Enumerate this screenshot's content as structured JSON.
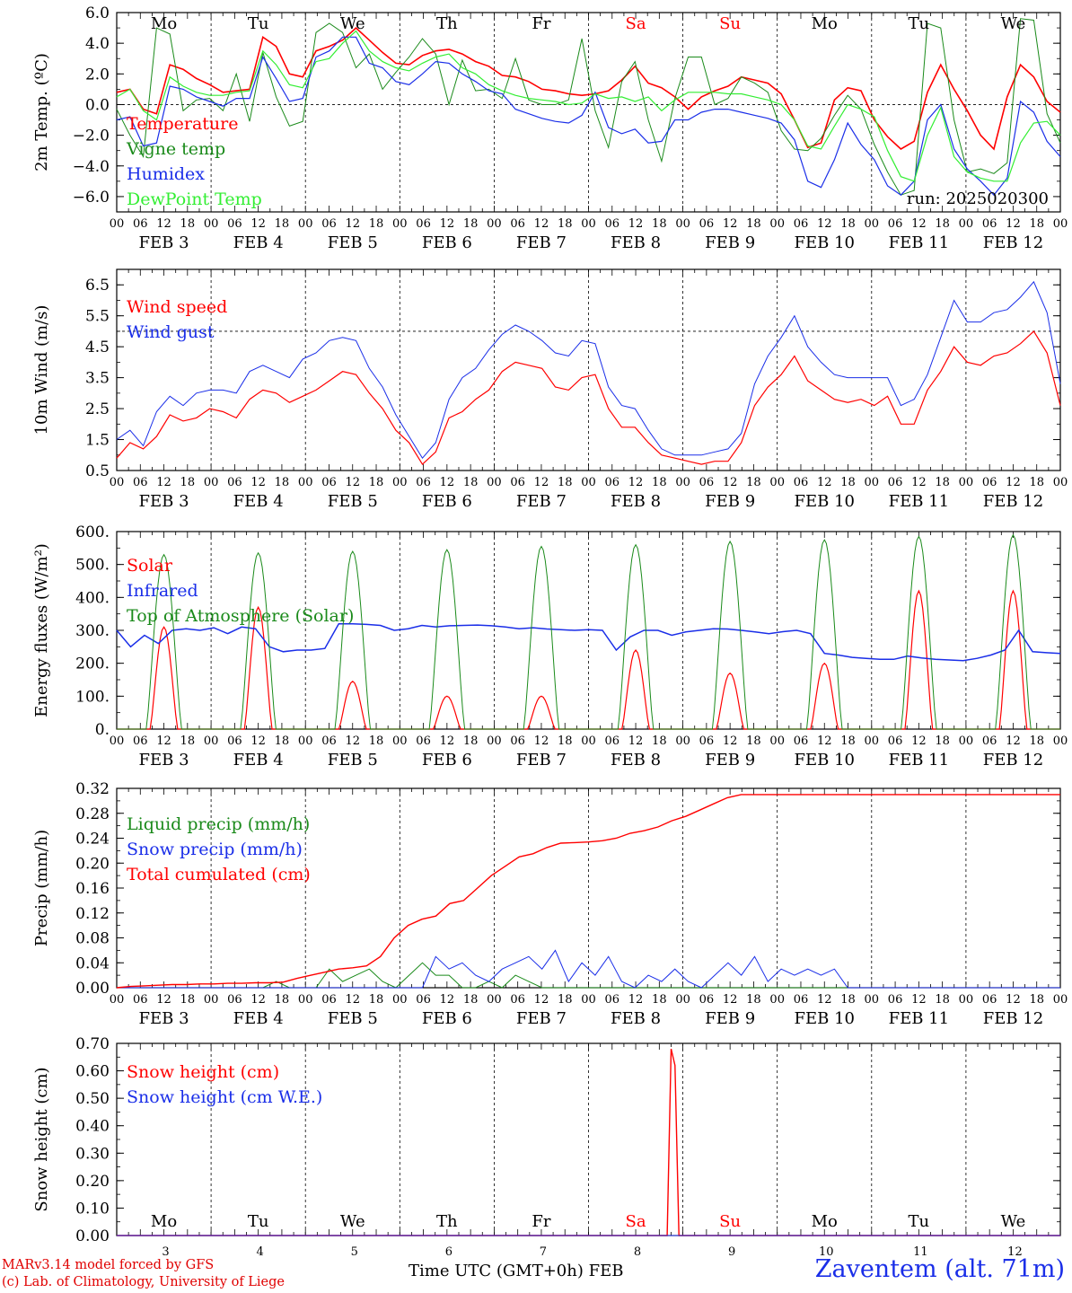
{
  "chart_data": [
    {
      "id": "temp",
      "type": "line",
      "ylabel": "2m Temp. (ºC)",
      "ylim": [
        -7,
        6
      ],
      "yticks": [
        "6.0",
        "4.0",
        "2.0",
        "0.0",
        "−2.0",
        "−4.0",
        "−6.0"
      ],
      "ytick_values": [
        6,
        4,
        2,
        0,
        -2,
        -4,
        -6
      ],
      "hline": 0,
      "run_label": "run: 2025020300",
      "days_top": [
        {
          "label": "Mo",
          "color": "#000000"
        },
        {
          "label": "Tu",
          "color": "#000000"
        },
        {
          "label": "We",
          "color": "#000000"
        },
        {
          "label": "Th",
          "color": "#000000"
        },
        {
          "label": "Fr",
          "color": "#000000"
        },
        {
          "label": "Sa",
          "color": "#ff0000"
        },
        {
          "label": "Su",
          "color": "#ff0000"
        },
        {
          "label": "Mo",
          "color": "#000000"
        },
        {
          "label": "Tu",
          "color": "#000000"
        },
        {
          "label": "We",
          "color": "#000000"
        }
      ],
      "series": [
        {
          "name": "Temperature",
          "color": "#ff0000",
          "width": 1.6,
          "values": [
            0.8,
            1,
            -0.3,
            -0.6,
            2.6,
            2.3,
            1.7,
            1.3,
            0.8,
            0.9,
            1,
            4.4,
            3.8,
            2,
            1.8,
            3.5,
            3.8,
            4.2,
            5,
            4.2,
            3.4,
            2.7,
            2.6,
            3.2,
            3.5,
            3.6,
            3.3,
            2.8,
            2.5,
            1.9,
            1.8,
            1.5,
            1,
            0.9,
            0.7,
            0.6,
            0.7,
            0.9,
            1.6,
            2.5,
            1.4,
            1.1,
            0.5,
            -0.3,
            0.5,
            0.9,
            1.2,
            1.8,
            1.6,
            1.4,
            0.7,
            -1,
            -2.8,
            -2.5,
            0.3,
            1.1,
            0.9,
            -1,
            -2.1,
            -2.9,
            -2.4,
            0.8,
            2.6,
            1,
            -0.4,
            -2,
            -2.9,
            0.5,
            2.6,
            1.8,
            0.2,
            -0.5
          ]
        },
        {
          "name": "Vigne temp",
          "color": "#1a8a1a",
          "width": 1,
          "values": [
            -0.3,
            -2,
            -3.4,
            5,
            4.6,
            -0.4,
            0.3,
            0.4,
            -0.4,
            2,
            -1.1,
            3.4,
            0.5,
            -1.4,
            -1.1,
            4.7,
            5.3,
            4.7,
            2.4,
            3.3,
            1,
            2.1,
            3.1,
            4.3,
            3.3,
            0,
            2.9,
            0.9,
            1,
            0.4,
            3,
            0.3,
            0,
            0,
            0.3,
            4.3,
            -0.4,
            -2.8,
            1.5,
            2.8,
            -1,
            -3.7,
            0.4,
            3.1,
            3.1,
            0,
            0.4,
            1.8,
            1.4,
            0.8,
            -1.7,
            -2.9,
            -3,
            -2.2,
            -0.7,
            0.6,
            -0.3,
            -2.6,
            -4.4,
            -5.9,
            -5.6,
            5.3,
            5,
            -1,
            -4.4,
            -4.2,
            -4.5,
            -3.8,
            5.6,
            5.5,
            -0.6,
            -2.5
          ]
        },
        {
          "name": "Humidex",
          "color": "#1a2ee8",
          "width": 1.2,
          "values": [
            -1,
            -0.8,
            -2.7,
            -2.5,
            1.2,
            1,
            0.5,
            0.2,
            -0.1,
            0.4,
            0.4,
            3.1,
            1.7,
            0.2,
            0.4,
            3.1,
            3.5,
            4.4,
            4.4,
            2.7,
            2.4,
            1.5,
            1.3,
            2,
            2.8,
            2.7,
            2,
            1.5,
            0.9,
            0.7,
            -0.3,
            -0.6,
            -0.9,
            -1.1,
            -1.2,
            -0.7,
            0.8,
            -1.5,
            -1.9,
            -1.6,
            -2.5,
            -2.4,
            -1,
            -1,
            -0.5,
            -0.3,
            -0.3,
            -0.5,
            -0.7,
            -0.9,
            -1.2,
            -2.3,
            -5,
            -5.4,
            -3.6,
            -1.2,
            -2.6,
            -3.6,
            -5.3,
            -5.9,
            -5,
            -1,
            0,
            -2.9,
            -4.2,
            -5,
            -5.9,
            -4.8,
            0.2,
            -0.5,
            -2.4,
            -3.4
          ]
        },
        {
          "name": "DewPoint Temp",
          "color": "#33ee33",
          "width": 1.2,
          "values": [
            0.5,
            1,
            -0.4,
            -1,
            1.8,
            1.2,
            0.8,
            0.6,
            0.6,
            0.8,
            0.9,
            3.5,
            2.6,
            1.3,
            1.1,
            2.8,
            3,
            4,
            4.8,
            3.5,
            2.8,
            2.4,
            2.2,
            2.7,
            3.1,
            3.3,
            2.4,
            2,
            1.3,
            0.9,
            0.6,
            0.4,
            0.3,
            0.2,
            0,
            0.1,
            0.7,
            0.4,
            0.5,
            0.2,
            0.5,
            -0.4,
            0.3,
            0.8,
            0.8,
            0.8,
            0.7,
            0.7,
            0.5,
            0.3,
            0,
            -1,
            -2.7,
            -2.9,
            -1.4,
            0,
            -0.3,
            -0.8,
            -3,
            -4.7,
            -5,
            -2,
            -0.2,
            -3.4,
            -4.4,
            -4.8,
            -5,
            -5,
            -2.5,
            -1.2,
            -1.1,
            -2
          ]
        }
      ]
    },
    {
      "id": "wind",
      "type": "line",
      "ylabel": "10m Wind (m/s)",
      "ylim": [
        0.5,
        7
      ],
      "yticks": [
        "6.5",
        "5.5",
        "4.5",
        "3.5",
        "2.5",
        "1.5",
        "0.5"
      ],
      "ytick_values": [
        6.5,
        5.5,
        4.5,
        3.5,
        2.5,
        1.5,
        0.5
      ],
      "hline": 5,
      "series": [
        {
          "name": "Wind speed",
          "color": "#ff0000",
          "width": 1.2,
          "values": [
            0.9,
            1.4,
            1.2,
            1.6,
            2.3,
            2.1,
            2.2,
            2.5,
            2.4,
            2.2,
            2.8,
            3.1,
            3,
            2.7,
            2.9,
            3.1,
            3.4,
            3.7,
            3.6,
            3,
            2.5,
            1.8,
            1.4,
            0.7,
            1.1,
            2.2,
            2.4,
            2.8,
            3.1,
            3.7,
            4,
            3.9,
            3.8,
            3.2,
            3.1,
            3.5,
            3.6,
            2.5,
            1.9,
            1.9,
            1.4,
            1,
            0.9,
            0.8,
            0.7,
            0.8,
            0.8,
            1.4,
            2.6,
            3.2,
            3.6,
            4.2,
            3.4,
            3.1,
            2.8,
            2.7,
            2.8,
            2.6,
            2.9,
            2,
            2,
            3.1,
            3.7,
            4.5,
            4,
            3.9,
            4.2,
            4.3,
            4.6,
            5,
            4.3,
            2.6
          ]
        },
        {
          "name": "Wind gust",
          "color": "#1a2ee8",
          "width": 1,
          "values": [
            1.5,
            1.8,
            1.3,
            2.4,
            2.9,
            2.6,
            3,
            3.1,
            3.1,
            3,
            3.7,
            3.9,
            3.7,
            3.5,
            4.1,
            4.3,
            4.7,
            4.8,
            4.7,
            3.8,
            3.2,
            2.3,
            1.6,
            0.9,
            1.4,
            2.8,
            3.5,
            3.8,
            4.4,
            4.9,
            5.2,
            5,
            4.7,
            4.3,
            4.2,
            4.7,
            4.6,
            3.2,
            2.6,
            2.5,
            1.8,
            1.2,
            1,
            1,
            1,
            1.1,
            1.2,
            1.7,
            3.3,
            4.2,
            4.8,
            5.5,
            4.5,
            4,
            3.6,
            3.5,
            3.5,
            3.5,
            3.5,
            2.6,
            2.8,
            3.6,
            4.8,
            6,
            5.3,
            5.3,
            5.6,
            5.7,
            6.1,
            6.6,
            5.6,
            3.3
          ]
        }
      ]
    },
    {
      "id": "flux",
      "type": "line",
      "ylabel": "Energy fluxes (W/m²)",
      "ylim": [
        0,
        600
      ],
      "yticks": [
        "600.",
        "500.",
        "400.",
        "300.",
        "200.",
        "100.",
        "0."
      ],
      "ytick_values": [
        600,
        500,
        400,
        300,
        200,
        100,
        0
      ],
      "series": [
        {
          "name": "Solar",
          "color": "#ff0000",
          "width": 1.2,
          "values_note": "daily peaks",
          "peaks": [
            310,
            370,
            145,
            100,
            100,
            240,
            170,
            200,
            420,
            420
          ]
        },
        {
          "name": "Infrared",
          "color": "#1a2ee8",
          "width": 1.5,
          "values": [
            300,
            250,
            285,
            260,
            300,
            305,
            300,
            308,
            290,
            310,
            305,
            250,
            235,
            240,
            240,
            245,
            320,
            320,
            318,
            315,
            300,
            305,
            315,
            310,
            314,
            315,
            316,
            314,
            310,
            305,
            308,
            304,
            302,
            300,
            302,
            300,
            240,
            280,
            300,
            300,
            285,
            295,
            300,
            305,
            304,
            300,
            295,
            290,
            296,
            300,
            290,
            230,
            225,
            218,
            215,
            212,
            212,
            222,
            216,
            212,
            210,
            208,
            215,
            225,
            240,
            300,
            235,
            232,
            230
          ]
        },
        {
          "name": "Top of Atmosphere (Solar)",
          "color": "#1a8a1a",
          "width": 1,
          "peaks": [
            530,
            535,
            540,
            545,
            555,
            560,
            570,
            575,
            585,
            590
          ]
        }
      ]
    },
    {
      "id": "precip",
      "type": "line",
      "ylabel": "Precip (mm/h)",
      "ylim": [
        0,
        0.32
      ],
      "yticks": [
        "0.32",
        "0.28",
        "0.24",
        "0.20",
        "0.16",
        "0.12",
        "0.08",
        "0.04",
        "0.00"
      ],
      "ytick_values": [
        0.32,
        0.28,
        0.24,
        0.2,
        0.16,
        0.12,
        0.08,
        0.04,
        0.0
      ],
      "series": [
        {
          "name": "Liquid precip (mm/h)",
          "color": "#1a8a1a",
          "width": 1,
          "values": [
            0,
            0,
            0,
            0,
            0,
            0,
            0,
            0,
            0,
            0,
            0,
            0,
            0.01,
            0,
            0,
            0,
            0.03,
            0.01,
            0.02,
            0.03,
            0.01,
            0,
            0.02,
            0.04,
            0.02,
            0.02,
            0,
            0,
            0.01,
            0,
            0.02,
            0.01,
            0,
            0,
            0,
            0,
            0,
            0,
            0,
            0,
            0,
            0,
            0,
            0,
            0,
            0,
            0,
            0,
            0,
            0,
            0,
            0,
            0,
            0,
            0,
            0,
            0,
            0,
            0,
            0,
            0,
            0,
            0,
            0,
            0,
            0,
            0,
            0,
            0,
            0,
            0,
            0
          ]
        },
        {
          "name": "Snow precip (mm/h)",
          "color": "#1a2ee8",
          "width": 1,
          "values": [
            0,
            0,
            0,
            0,
            0,
            0,
            0,
            0,
            0,
            0,
            0,
            0,
            0,
            0,
            0,
            0,
            0,
            0,
            0,
            0,
            0,
            0,
            0,
            0,
            0.05,
            0.03,
            0.04,
            0.02,
            0.01,
            0.03,
            0.04,
            0.05,
            0.03,
            0.06,
            0.01,
            0.04,
            0.02,
            0.05,
            0.01,
            0,
            0.02,
            0.01,
            0.03,
            0.01,
            0,
            0.02,
            0.04,
            0.02,
            0.05,
            0.01,
            0.03,
            0.02,
            0.03,
            0.02,
            0.03,
            0,
            0,
            0,
            0,
            0,
            0,
            0,
            0,
            0,
            0,
            0,
            0,
            0,
            0,
            0,
            0,
            0
          ]
        },
        {
          "name": "Total cumulated (cm)",
          "color": "#ff0000",
          "width": 1.4,
          "values": [
            0,
            0.002,
            0.003,
            0.004,
            0.005,
            0.005,
            0.006,
            0.006,
            0.007,
            0.007,
            0.008,
            0.008,
            0.009,
            0.015,
            0.02,
            0.025,
            0.03,
            0.032,
            0.035,
            0.05,
            0.08,
            0.1,
            0.11,
            0.115,
            0.135,
            0.14,
            0.16,
            0.18,
            0.195,
            0.21,
            0.215,
            0.225,
            0.232,
            0.233,
            0.234,
            0.236,
            0.24,
            0.248,
            0.252,
            0.258,
            0.268,
            0.275,
            0.285,
            0.295,
            0.305,
            0.31,
            0.31,
            0.31,
            0.31,
            0.31,
            0.31,
            0.31,
            0.31,
            0.31,
            0.31,
            0.31,
            0.31,
            0.31,
            0.31,
            0.31,
            0.31,
            0.31,
            0.31,
            0.31,
            0.31,
            0.31,
            0.31,
            0.31,
            0.31
          ]
        }
      ]
    },
    {
      "id": "snow",
      "type": "line",
      "ylabel": "Snow height (cm)",
      "ylim": [
        0,
        0.7
      ],
      "yticks": [
        "0.70",
        "0.60",
        "0.50",
        "0.40",
        "0.30",
        "0.20",
        "0.10",
        "0.00"
      ],
      "ytick_values": [
        0.7,
        0.6,
        0.5,
        0.4,
        0.3,
        0.2,
        0.1,
        0.0
      ],
      "days_bottom": [
        {
          "label": "Mo",
          "color": "#000000"
        },
        {
          "label": "Tu",
          "color": "#000000"
        },
        {
          "label": "We",
          "color": "#000000"
        },
        {
          "label": "Th",
          "color": "#000000"
        },
        {
          "label": "Fr",
          "color": "#000000"
        },
        {
          "label": "Sa",
          "color": "#ff0000"
        },
        {
          "label": "Su",
          "color": "#ff0000"
        },
        {
          "label": "Mo",
          "color": "#000000"
        },
        {
          "label": "Tu",
          "color": "#000000"
        },
        {
          "label": "We",
          "color": "#000000"
        }
      ],
      "day_numbers": [
        "3",
        "4",
        "5",
        "6",
        "7",
        "8",
        "9",
        "10",
        "11",
        "12"
      ],
      "series": [
        {
          "name": "Snow height (cm)",
          "color": "#ff0000",
          "width": 1.4,
          "spike": {
            "day_hour": 141,
            "peak": 0.68
          }
        },
        {
          "name": "Snow height (cm W.E.)",
          "color": "#1a2ee8",
          "width": 1
        }
      ]
    }
  ],
  "time_axis": {
    "hour_ticks": [
      "00",
      "06",
      "12",
      "18"
    ],
    "end_tick": "00",
    "dates": [
      "FEB  3",
      "FEB  4",
      "FEB  5",
      "FEB  6",
      "FEB  7",
      "FEB  8",
      "FEB  9",
      "FEB 10",
      "FEB 11",
      "FEB 12"
    ]
  },
  "footer": {
    "credit_line1": "MARv3.14 model forced by GFS",
    "credit_line2": "(c) Lab. of Climatology, University of Liege",
    "xlabel": "Time UTC (GMT+0h) FEB",
    "station": "Zaventem (alt. 71m)"
  }
}
